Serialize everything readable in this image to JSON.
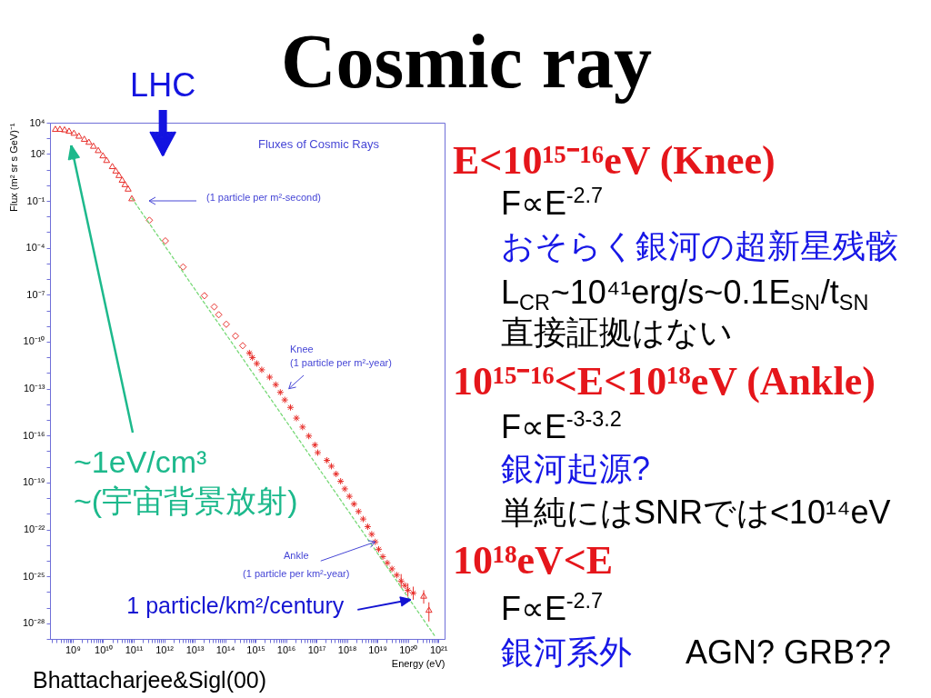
{
  "chart_data": [
    {
      "type": "scatter",
      "title": "Cosmic ray",
      "xlabel": "Energy (eV)",
      "ylabel": "Flux (m² sr s GeV)⁻¹",
      "log": "xy",
      "xlim": [
        180000000.0,
        1.6e+21
      ],
      "ylim": [
        1e-29,
        10000.0
      ],
      "xticks": [
        {
          "value": 200000000.0,
          "label": null
        },
        {
          "value": 300000000.0,
          "label": null
        },
        {
          "value": 400000000.0,
          "label": null
        },
        {
          "value": 500000000.0,
          "label": null
        },
        {
          "value": 600000000.0,
          "label": null
        },
        {
          "value": 700000000.0,
          "label": null
        },
        {
          "value": 800000000.0,
          "label": null
        },
        {
          "value": 900000000.0,
          "label": null
        },
        {
          "value": 1000000000.0,
          "label": "10⁹"
        },
        {
          "value": 2000000000.0,
          "label": null
        },
        {
          "value": 3000000000.0,
          "label": null
        },
        {
          "value": 4000000000.0,
          "label": null
        },
        {
          "value": 5000000000.0,
          "label": null
        },
        {
          "value": 6000000000.0,
          "label": null
        },
        {
          "value": 7000000000.0,
          "label": null
        },
        {
          "value": 8000000000.0,
          "label": null
        },
        {
          "value": 9000000000.0,
          "label": null
        },
        {
          "value": 10000000000.0,
          "label": "10¹⁰"
        },
        {
          "value": 20000000000.0,
          "label": null
        },
        {
          "value": 30000000000.0,
          "label": null
        },
        {
          "value": 40000000000.0,
          "label": null
        },
        {
          "value": 50000000000.0,
          "label": null
        },
        {
          "value": 60000000000.0,
          "label": null
        },
        {
          "value": 70000000000.0,
          "label": null
        },
        {
          "value": 80000000000.0,
          "label": null
        },
        {
          "value": 90000000000.0,
          "label": null
        },
        {
          "value": 100000000000.0,
          "label": "10¹¹"
        },
        {
          "value": 200000000000.0,
          "label": null
        },
        {
          "value": 300000000000.0,
          "label": null
        },
        {
          "value": 400000000000.0,
          "label": null
        },
        {
          "value": 500000000000.0,
          "label": null
        },
        {
          "value": 600000000000.0,
          "label": null
        },
        {
          "value": 700000000000.0,
          "label": null
        },
        {
          "value": 800000000000.0,
          "label": null
        },
        {
          "value": 900000000000.0,
          "label": null
        },
        {
          "value": 1000000000000.0,
          "label": "10¹²"
        },
        {
          "value": 2000000000000.0,
          "label": null
        },
        {
          "value": 3000000000000.0,
          "label": null
        },
        {
          "value": 4000000000000.0,
          "label": null
        },
        {
          "value": 5000000000000.0,
          "label": null
        },
        {
          "value": 6000000000000.0,
          "label": null
        },
        {
          "value": 7000000000000.0,
          "label": null
        },
        {
          "value": 8000000000000.0,
          "label": null
        },
        {
          "value": 9000000000000.0,
          "label": null
        },
        {
          "value": 10000000000000.0,
          "label": "10¹³"
        },
        {
          "value": 20000000000000.0,
          "label": null
        },
        {
          "value": 30000000000000.0,
          "label": null
        },
        {
          "value": 40000000000000.0,
          "label": null
        },
        {
          "value": 50000000000000.0,
          "label": null
        },
        {
          "value": 60000000000000.0,
          "label": null
        },
        {
          "value": 70000000000000.0,
          "label": null
        },
        {
          "value": 80000000000000.0,
          "label": null
        },
        {
          "value": 90000000000000.0,
          "label": null
        },
        {
          "value": 100000000000000.0,
          "label": "10¹⁴"
        },
        {
          "value": 200000000000000.0,
          "label": null
        },
        {
          "value": 300000000000000.0,
          "label": null
        },
        {
          "value": 400000000000000.0,
          "label": null
        },
        {
          "value": 500000000000000.0,
          "label": null
        },
        {
          "value": 600000000000000.0,
          "label": null
        },
        {
          "value": 700000000000000.0,
          "label": null
        },
        {
          "value": 800000000000000.0,
          "label": null
        },
        {
          "value": 900000000000000.0,
          "label": null
        },
        {
          "value": 1000000000000000.0,
          "label": "10¹⁵"
        },
        {
          "value": 2000000000000000.0,
          "label": null
        },
        {
          "value": 3000000000000000.0,
          "label": null
        },
        {
          "value": 4000000000000000.0,
          "label": null
        },
        {
          "value": 5000000000000000.0,
          "label": null
        },
        {
          "value": 6000000000000000.0,
          "label": null
        },
        {
          "value": 7000000000000000.0,
          "label": null
        },
        {
          "value": 8000000000000000.0,
          "label": null
        },
        {
          "value": 9000000000000000.0,
          "label": null
        },
        {
          "value": 1e+16,
          "label": "10¹⁶"
        },
        {
          "value": 2e+16,
          "label": null
        },
        {
          "value": 3e+16,
          "label": null
        },
        {
          "value": 4e+16,
          "label": null
        },
        {
          "value": 5e+16,
          "label": null
        },
        {
          "value": 6e+16,
          "label": null
        },
        {
          "value": 7e+16,
          "label": null
        },
        {
          "value": 8e+16,
          "label": null
        },
        {
          "value": 9e+16,
          "label": null
        },
        {
          "value": 1e+17,
          "label": "10¹⁷"
        },
        {
          "value": 2e+17,
          "label": null
        },
        {
          "value": 3e+17,
          "label": null
        },
        {
          "value": 4e+17,
          "label": null
        },
        {
          "value": 5e+17,
          "label": null
        },
        {
          "value": 6e+17,
          "label": null
        },
        {
          "value": 7e+17,
          "label": null
        },
        {
          "value": 8e+17,
          "label": null
        },
        {
          "value": 9e+17,
          "label": null
        },
        {
          "value": 1e+18,
          "label": "10¹⁸"
        },
        {
          "value": 2e+18,
          "label": null
        },
        {
          "value": 3e+18,
          "label": null
        },
        {
          "value": 4e+18,
          "label": null
        },
        {
          "value": 5e+18,
          "label": null
        },
        {
          "value": 6e+18,
          "label": null
        },
        {
          "value": 7e+18,
          "label": null
        },
        {
          "value": 8e+18,
          "label": null
        },
        {
          "value": 9e+18,
          "label": null
        },
        {
          "value": 1e+19,
          "label": "10¹⁹"
        },
        {
          "value": 2e+19,
          "label": null
        },
        {
          "value": 3e+19,
          "label": null
        },
        {
          "value": 4e+19,
          "label": null
        },
        {
          "value": 5e+19,
          "label": null
        },
        {
          "value": 6e+19,
          "label": null
        },
        {
          "value": 7e+19,
          "label": null
        },
        {
          "value": 8e+19,
          "label": null
        },
        {
          "value": 9e+19,
          "label": null
        },
        {
          "value": 1e+20,
          "label": "10²⁰"
        },
        {
          "value": 2e+20,
          "label": null
        },
        {
          "value": 3e+20,
          "label": null
        },
        {
          "value": 4e+20,
          "label": null
        },
        {
          "value": 5e+20,
          "label": null
        },
        {
          "value": 6e+20,
          "label": null
        },
        {
          "value": 7e+20,
          "label": null
        },
        {
          "value": 8e+20,
          "label": null
        },
        {
          "value": 9e+20,
          "label": null
        },
        {
          "value": 1e+21,
          "label": "10²¹"
        }
      ],
      "yticks": [
        {
          "value": 1e-29,
          "label": null
        },
        {
          "value": 1e-28,
          "label": "10⁻²⁸"
        },
        {
          "value": 1e-27,
          "label": null
        },
        {
          "value": 1e-26,
          "label": null
        },
        {
          "value": 1e-25,
          "label": "10⁻²⁵"
        },
        {
          "value": 1e-24,
          "label": null
        },
        {
          "value": 1e-23,
          "label": null
        },
        {
          "value": 1e-22,
          "label": "10⁻²²"
        },
        {
          "value": 1e-21,
          "label": null
        },
        {
          "value": 1e-20,
          "label": null
        },
        {
          "value": 1e-19,
          "label": "10⁻¹⁹"
        },
        {
          "value": 1e-18,
          "label": null
        },
        {
          "value": 1e-17,
          "label": null
        },
        {
          "value": 1e-16,
          "label": "10⁻¹⁶"
        },
        {
          "value": 1e-15,
          "label": null
        },
        {
          "value": 1e-14,
          "label": null
        },
        {
          "value": 1e-13,
          "label": "10⁻¹³"
        },
        {
          "value": 1e-12,
          "label": null
        },
        {
          "value": 1e-11,
          "label": null
        },
        {
          "value": 1e-10,
          "label": "10⁻¹⁰"
        },
        {
          "value": 1e-09,
          "label": null
        },
        {
          "value": 1e-08,
          "label": null
        },
        {
          "value": 1e-07,
          "label": "10⁻⁷"
        },
        {
          "value": 1e-06,
          "label": null
        },
        {
          "value": 1e-05,
          "label": null
        },
        {
          "value": 0.0001,
          "label": "10⁻⁴"
        },
        {
          "value": 0.001,
          "label": null
        },
        {
          "value": 0.01,
          "label": null
        },
        {
          "value": 0.1,
          "label": "10⁻¹"
        },
        {
          "value": 1,
          "label": null
        },
        {
          "value": 10,
          "label": null
        },
        {
          "value": 100,
          "label": "10²"
        },
        {
          "value": 1000,
          "label": null
        },
        {
          "value": 10000,
          "label": "10⁴"
        }
      ],
      "series": [
        {
          "type": "scatter",
          "marker": "triangle",
          "color": "#e8302c",
          "x": [
            270000000.0,
            380000000.0,
            540000000.0,
            760000000.0,
            1100000000.0,
            1600000000.0,
            2400000000.0,
            3400000000.0,
            4800000000.0,
            6900000000.0,
            9800000000.0,
            13000000000.0,
            20000000000.0,
            26000000000.0,
            33000000000.0,
            42000000000.0,
            52000000000.0,
            66000000000.0,
            87000000000.0,
            3.3e+20,
            4.9e+20
          ],
          "values": [
            4100,
            4100,
            3800,
            3100,
            2300,
            1500,
            950,
            610,
            340,
            180,
            83,
            42,
            17,
            8.9,
            4.6,
            2.3,
            1.2,
            0.62,
            0.15,
            5.9e-27,
            7.4e-28
          ],
          "errors": [
            null,
            null,
            null,
            null,
            null,
            null,
            null,
            null,
            null,
            null,
            null,
            null,
            null,
            null,
            null,
            null,
            null,
            null,
            null,
            [
              1.8e-27,
              1.3e-26
            ],
            [
              1.3e-28,
              2.2e-27
            ]
          ]
        },
        {
          "type": "scatter",
          "marker": "diamond",
          "color": "#e8302c",
          "x": [
            330000000000.0,
            1100000000000.0,
            4200000000000.0,
            21000000000000.0,
            44000000000000.0,
            62000000000000.0,
            110000000000000.0,
            220000000000000.0,
            380000000000000.0
          ],
          "values": [
            0.0058,
            0.00028,
            6e-06,
            8.7e-08,
            1.7e-08,
            5.3e-09,
            1.3e-09,
            2.3e-10,
            5.6e-11
          ]
        },
        {
          "type": "scatter",
          "marker": "cross",
          "color": "#e8302c",
          "x": [
            630000000000000.0,
            790000000000000.0,
            1100000000000000.0,
            1600000000000000.0,
            2900000000000000.0,
            4600000000000000.0,
            6500000000000000.0,
            9100000000000000.0,
            1.4e+16,
            2.2e+16,
            3.5e+16,
            5.6e+16,
            8.9e+16,
            1.1e+17,
            2.2e+17,
            3.1e+17,
            4.4e+17,
            6.2e+17,
            8.5e+17,
            1.2e+18,
            1.7e+18,
            2.4e+18,
            3.4e+18,
            4.8e+18,
            6.5e+18,
            8.5e+18,
            1.1e+19,
            1.5e+19,
            2.1e+19,
            3e+19,
            4.3e+19,
            6e+19,
            7.9e+19,
            1e+20,
            1.5e+20
          ],
          "values": [
            1.9e-11,
            9.7e-12,
            4e-12,
            1.6e-12,
            5.4e-13,
            1.8e-13,
            5.8e-14,
            1.9e-14,
            6.3e-15,
            1.3e-15,
            3.5e-16,
            9.3e-17,
            2.5e-17,
            8.1e-18,
            2.6e-18,
            1.1e-18,
            3.5e-19,
            1.2e-19,
            3.9e-20,
            1.3e-20,
            4.2e-21,
            1.4e-21,
            4.6e-22,
            1.5e-22,
            4.9e-23,
            1.6e-23,
            5.4e-24,
            1.8e-24,
            7.2e-25,
            3e-25,
            1.2e-25,
            5e-26,
            2.6e-26,
            1.3e-26,
            8.5e-27
          ],
          "errors": [
            null,
            null,
            null,
            null,
            null,
            null,
            null,
            null,
            null,
            null,
            null,
            null,
            null,
            null,
            null,
            null,
            null,
            null,
            null,
            null,
            null,
            null,
            null,
            null,
            null,
            null,
            null,
            null,
            null,
            null,
            null,
            [
              1.8e-26,
              1.4e-25
            ],
            null,
            [
              5e-27,
              3.5e-26
            ],
            [
              3.2e-27,
              2.2e-26
            ]
          ]
        },
        {
          "type": "line",
          "line_style": "dashed",
          "color": "#77d977",
          "x": [
            87000000000.0,
            8.1e+20
          ],
          "values": [
            0.15,
            1.3e-29
          ]
        }
      ],
      "annotations": [
        "Fluxes of Cosmic Rays",
        "(1 particle per m²-second)",
        "Knee\n(1 particle per m²-year)",
        {
          "text": "Ankle\n(1 particle per km²-year)",
          "x": 8.5e+18,
          "y": 1.6e-23
        },
        {
          "text": "1 particle/km²/century",
          "x": 1.2e+20,
          "y": 3.2e-27
        },
        "~1eV/cm³\n~(宇宙背景放射)",
        {
          "text": "LHC",
          "x": 910000000000.0
        },
        "Bhattacharjee&Sigl(00)"
      ]
    },
    {
      "type": "other",
      "annotations": [
        "E<10¹⁵⁻¹⁶eV (Knee)",
        "F∝E$^{-2.7}$",
        "おそらく銀河の超新星残骸",
        "L$_{CR}$~10⁴¹erg/s~0.1E$_{SN}$/t$_{SN}$",
        "直接証拠はない",
        "10¹⁵⁻¹⁶<E<10¹⁸eV (Ankle)",
        "F∝E$^{-3-3.2}$",
        "銀河起源?",
        "単純にはSNRでは<10¹⁴eV",
        "10¹⁸eV<E",
        "F∝E$^{-2.7}$",
        "銀河系外",
        "AGN? GRB??"
      ]
    }
  ]
}
